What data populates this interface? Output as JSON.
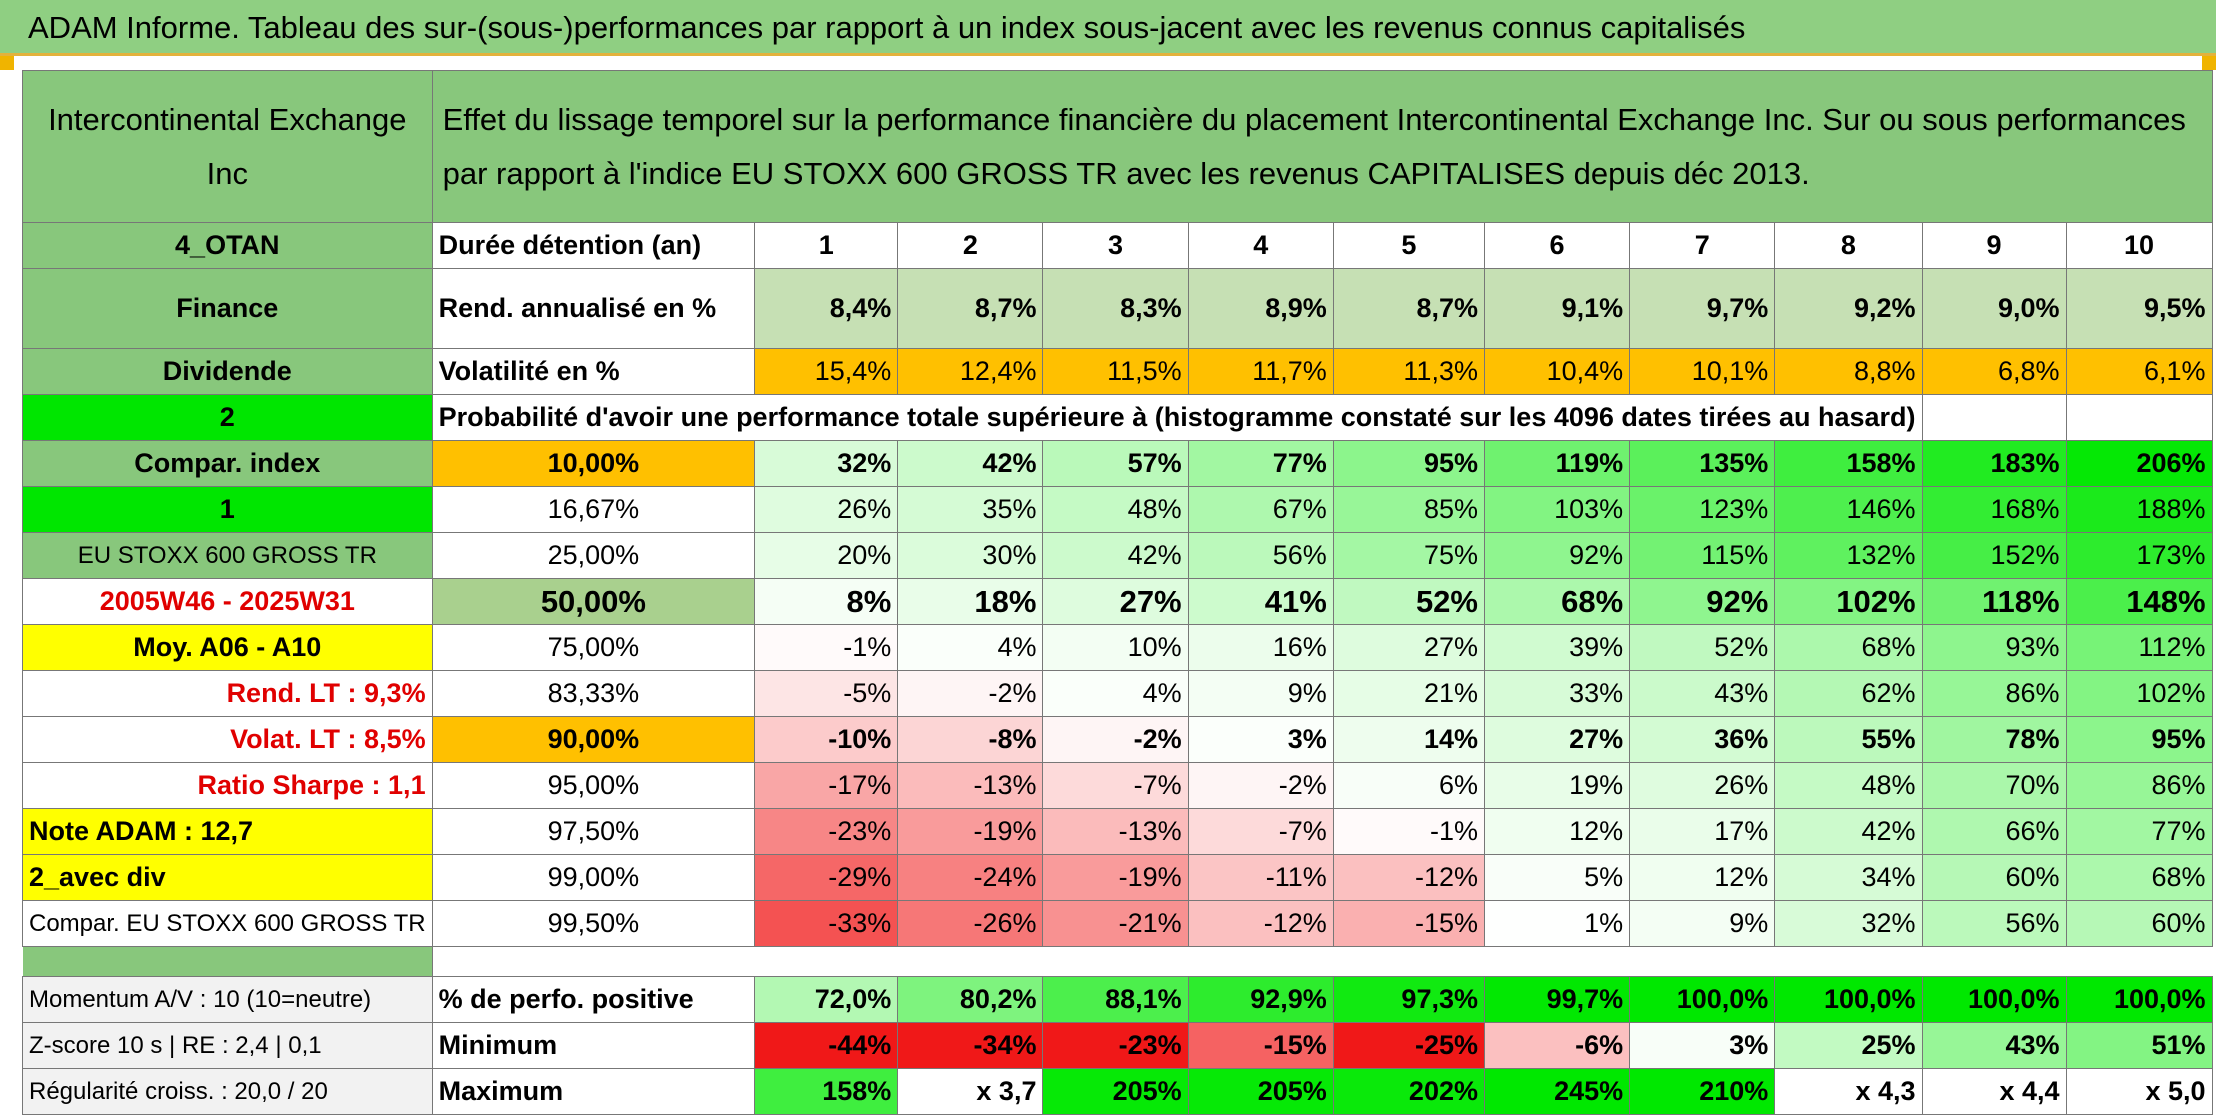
{
  "title": "ADAM Informe. Tableau des sur-(sous-)performances par rapport à un index sous-jacent avec les revenus connus capitalisés",
  "left_header": "Intercontinental Exchange Inc",
  "main_header": "Effet du lissage temporel sur la performance financière du placement Intercontinental Exchange Inc. Sur ou sous performances par rapport à l'indice EU STOXX 600 GROSS TR avec les revenus CAPITALISES depuis déc 2013.",
  "info": {
    "code": "4_OTAN",
    "sector": "Finance",
    "type": "Dividende",
    "num2": "2",
    "compar_label": "Compar. index",
    "num1": "1",
    "index_name": "EU STOXX 600 GROSS TR",
    "period": "2005W46 - 2025W31",
    "moy": "Moy. A06 - A10",
    "rend_lt": "Rend. LT :   9,3%",
    "volat_lt": "Volat. LT :   8,5%",
    "sharpe": "Ratio Sharpe :   1,1",
    "note": "Note ADAM : 12,7",
    "avec_div": "2_avec div",
    "compar_full": "Compar. EU STOXX 600 GROSS TR"
  },
  "duration_label": "Durée détention (an)",
  "years": [
    "1",
    "2",
    "3",
    "4",
    "5",
    "6",
    "7",
    "8",
    "9",
    "10"
  ],
  "rend_label": "Rend. annualisé en %",
  "rend": [
    "8,4%",
    "8,7%",
    "8,3%",
    "8,9%",
    "8,7%",
    "9,1%",
    "9,7%",
    "9,2%",
    "9,0%",
    "9,5%"
  ],
  "vol_label": "Volatilité en %",
  "vol": [
    "15,4%",
    "12,4%",
    "11,5%",
    "11,7%",
    "11,3%",
    "10,4%",
    "10,1%",
    "8,8%",
    "6,8%",
    "6,1%"
  ],
  "prob_label": "Probabilité d'avoir une performance totale supérieure à (histogramme constaté sur les 4096 dates tirées au hasard)",
  "quantiles": [
    {
      "p": "10,00%",
      "v": [
        "32%",
        "42%",
        "57%",
        "77%",
        "95%",
        "119%",
        "135%",
        "158%",
        "183%",
        "206%"
      ]
    },
    {
      "p": "16,67%",
      "v": [
        "26%",
        "35%",
        "48%",
        "67%",
        "85%",
        "103%",
        "123%",
        "146%",
        "168%",
        "188%"
      ]
    },
    {
      "p": "25,00%",
      "v": [
        "20%",
        "30%",
        "42%",
        "56%",
        "75%",
        "92%",
        "115%",
        "132%",
        "152%",
        "173%"
      ]
    },
    {
      "p": "50,00%",
      "v": [
        "8%",
        "18%",
        "27%",
        "41%",
        "52%",
        "68%",
        "92%",
        "102%",
        "118%",
        "148%"
      ]
    },
    {
      "p": "75,00%",
      "v": [
        "-1%",
        "4%",
        "10%",
        "16%",
        "27%",
        "39%",
        "52%",
        "68%",
        "93%",
        "112%"
      ]
    },
    {
      "p": "83,33%",
      "v": [
        "-5%",
        "-2%",
        "4%",
        "9%",
        "21%",
        "33%",
        "43%",
        "62%",
        "86%",
        "102%"
      ]
    },
    {
      "p": "90,00%",
      "v": [
        "-10%",
        "-8%",
        "-2%",
        "3%",
        "14%",
        "27%",
        "36%",
        "55%",
        "78%",
        "95%"
      ]
    },
    {
      "p": "95,00%",
      "v": [
        "-17%",
        "-13%",
        "-7%",
        "-2%",
        "6%",
        "19%",
        "26%",
        "48%",
        "70%",
        "86%"
      ]
    },
    {
      "p": "97,50%",
      "v": [
        "-23%",
        "-19%",
        "-13%",
        "-7%",
        "-1%",
        "12%",
        "17%",
        "42%",
        "66%",
        "77%"
      ]
    },
    {
      "p": "99,00%",
      "v": [
        "-29%",
        "-24%",
        "-19%",
        "-11%",
        "-12%",
        "5%",
        "12%",
        "34%",
        "60%",
        "68%"
      ]
    },
    {
      "p": "99,50%",
      "v": [
        "-33%",
        "-26%",
        "-21%",
        "-12%",
        "-15%",
        "1%",
        "9%",
        "32%",
        "56%",
        "60%"
      ]
    }
  ],
  "momentum": "Momentum A/V : 10 (10=neutre)",
  "zscore": "Z-score 10 s | RE : 2,4 | 0,1",
  "regularite": "Régularité croiss. : 20,0 / 20",
  "pos_label": "% de perfo. positive",
  "pos": [
    "72,0%",
    "80,2%",
    "88,1%",
    "92,9%",
    "97,3%",
    "99,7%",
    "100,0%",
    "100,0%",
    "100,0%",
    "100,0%"
  ],
  "min_label": "Minimum",
  "min": [
    "-44%",
    "-34%",
    "-23%",
    "-15%",
    "-25%",
    "-6%",
    "3%",
    "25%",
    "43%",
    "51%"
  ],
  "max_label": "Maximum",
  "max": [
    "158%",
    "x 3,7",
    "205%",
    "205%",
    "202%",
    "245%",
    "210%",
    "x 4,3",
    "x 4,4",
    "x 5,0"
  ],
  "colors": {
    "title_green": "#8fcf82",
    "label_green": "#88c77c",
    "light_green": "#c6e0b4",
    "bright_green": "#00e600",
    "orange": "#ffc000",
    "yellow": "#ffff00",
    "red_text": "#e00000"
  }
}
